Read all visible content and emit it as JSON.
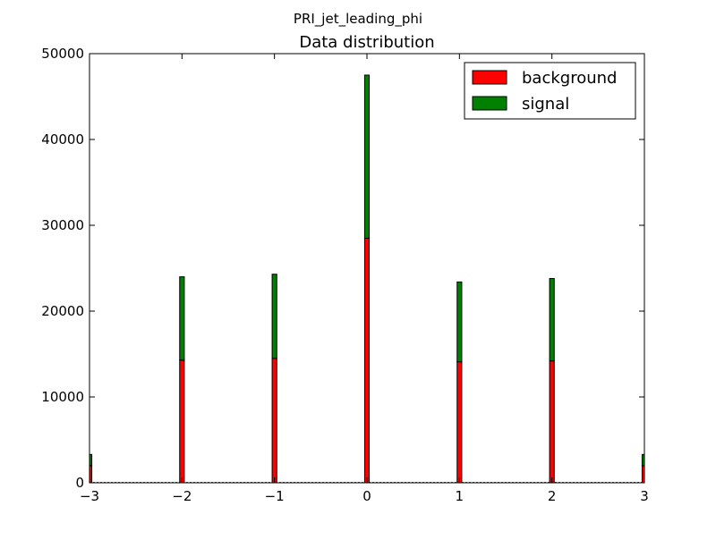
{
  "suptitle": "PRI_jet_leading_phi",
  "chart_data": {
    "type": "bar",
    "stacked": true,
    "title": "Data distribution",
    "xlabel": "",
    "ylabel": "",
    "xlim": [
      -3,
      3
    ],
    "ylim": [
      0,
      50000
    ],
    "x": [
      -3.0,
      -2.0,
      -1.0,
      0.0,
      1.0,
      2.0,
      3.0
    ],
    "series": [
      {
        "name": "background",
        "color": "#ff0000",
        "values": [
          2000,
          14300,
          14500,
          28500,
          14100,
          14200,
          2000
        ]
      },
      {
        "name": "signal",
        "color": "#008000",
        "values": [
          1300,
          9700,
          9800,
          19000,
          9300,
          9600,
          1300
        ]
      }
    ],
    "x_ticks": [
      "−3",
      "−2",
      "−1",
      "0",
      "1",
      "2",
      "3"
    ],
    "y_ticks": [
      "0",
      "10000",
      "20000",
      "30000",
      "40000",
      "50000"
    ],
    "legend_position": "top-right",
    "grid": false
  }
}
